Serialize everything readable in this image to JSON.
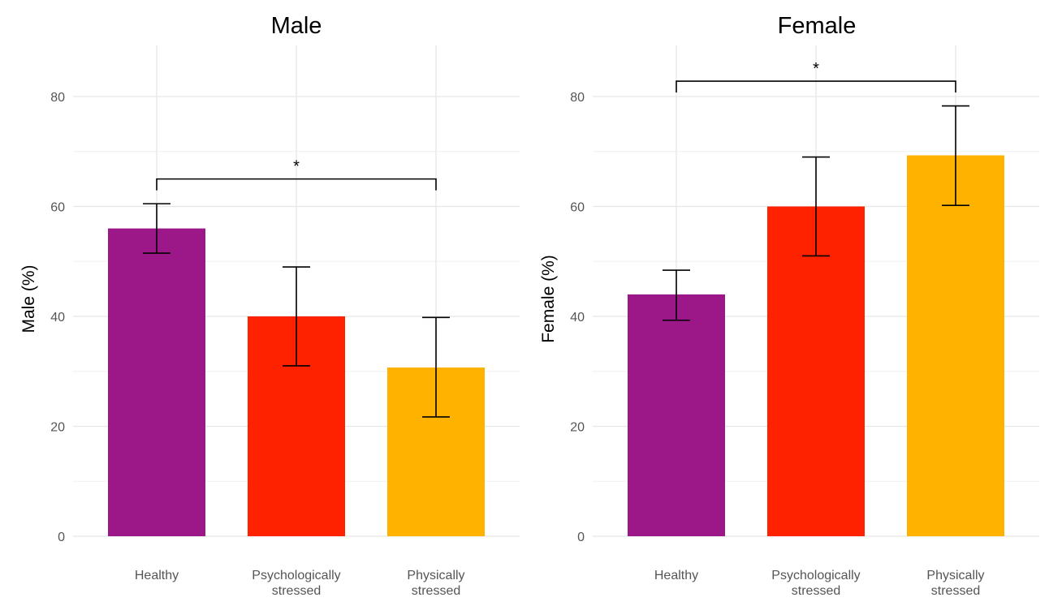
{
  "colors": {
    "Healthy": "#9c1889",
    "Psychologically stressed": "#ff2200",
    "Physically stressed": "#ffb300"
  },
  "chart_data": [
    {
      "type": "bar",
      "title": "Male",
      "ylabel": "Male (%)",
      "xlabel": "",
      "categories": [
        "Healthy",
        "Psychologically stressed",
        "Physically stressed"
      ],
      "category_label_lines": [
        [
          "Healthy"
        ],
        [
          "Psychologically",
          "stressed"
        ],
        [
          "Physically",
          "stressed"
        ]
      ],
      "values": [
        56,
        40,
        30.7
      ],
      "error_low": [
        51.5,
        31,
        21.7
      ],
      "error_high": [
        60.5,
        49,
        39.8
      ],
      "ylim": [
        0,
        89
      ],
      "yticks": [
        0,
        20,
        40,
        60,
        80
      ],
      "grid": true,
      "significance": [
        {
          "from": "Healthy",
          "to": "Physically stressed",
          "label": "*"
        }
      ]
    },
    {
      "type": "bar",
      "title": "Female",
      "ylabel": "Female (%)",
      "xlabel": "",
      "categories": [
        "Healthy",
        "Psychologically stressed",
        "Physically stressed"
      ],
      "category_label_lines": [
        [
          "Healthy"
        ],
        [
          "Psychologically",
          "stressed"
        ],
        [
          "Physically",
          "stressed"
        ]
      ],
      "values": [
        44,
        60,
        69.3
      ],
      "error_low": [
        39.3,
        51,
        60.2
      ],
      "error_high": [
        48.4,
        69,
        78.3
      ],
      "ylim": [
        0,
        89
      ],
      "yticks": [
        0,
        20,
        40,
        60,
        80
      ],
      "grid": true,
      "significance": [
        {
          "from": "Healthy",
          "to": "Physically stressed",
          "label": "*"
        }
      ]
    }
  ]
}
